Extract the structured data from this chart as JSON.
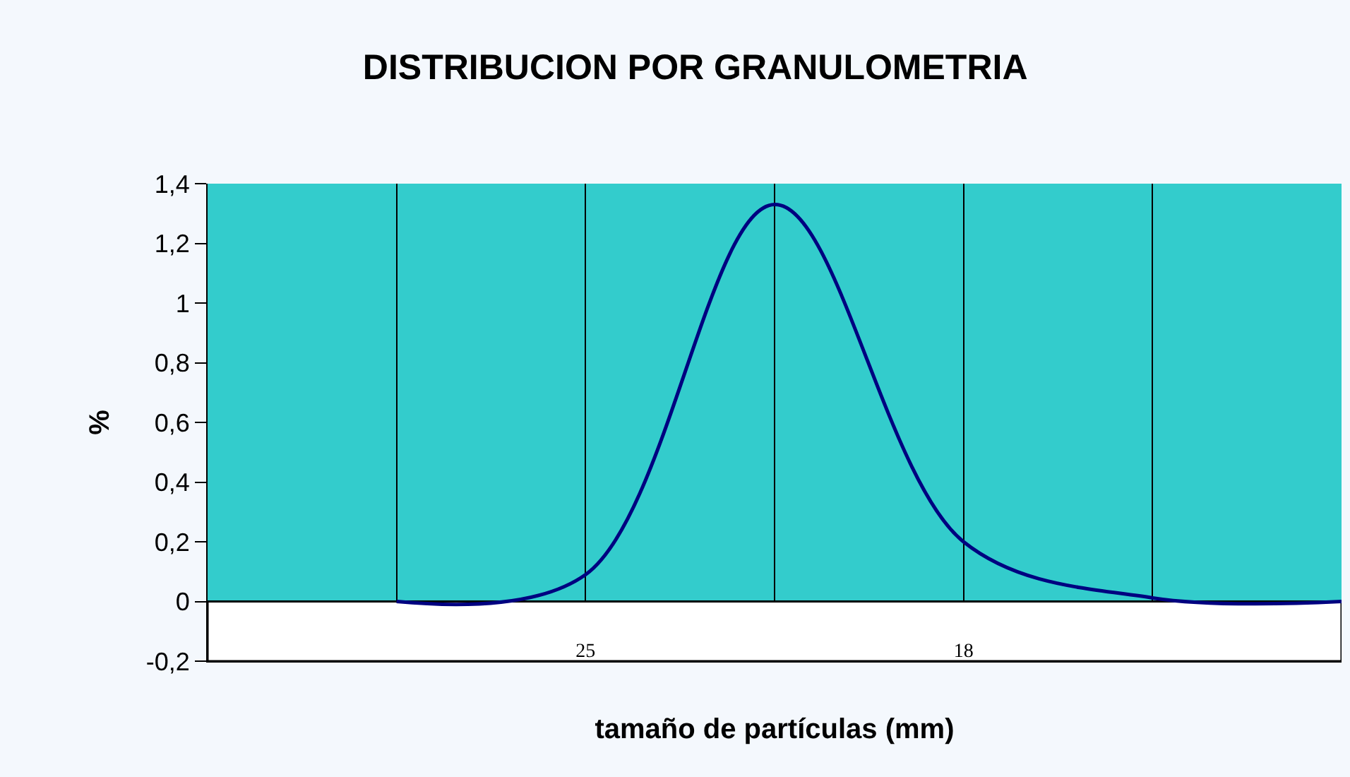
{
  "chart_data": {
    "type": "line",
    "title": "DISTRIBUCION POR GRANULOMETRIA",
    "xlabel": "tamaño de partículas (mm)",
    "ylabel": "%",
    "categories": [
      null,
      null,
      "25",
      null,
      "18",
      null,
      null
    ],
    "series": [
      {
        "color": "#000080",
        "values": [
          null,
          0,
          0.09,
          1.33,
          0.2,
          0.012,
          0
        ]
      }
    ],
    "ylim": [
      -0.2,
      1.4
    ],
    "yticks": [
      {
        "value": -0.2,
        "label": "-0,2"
      },
      0,
      {
        "value": 0.2,
        "label": "0,2"
      },
      {
        "value": 0.4,
        "label": "0,4"
      },
      {
        "value": 0.6,
        "label": "0,6"
      },
      {
        "value": 0.8,
        "label": "0,8"
      },
      1,
      {
        "value": 1.2,
        "label": "1,2"
      },
      {
        "value": 1.4,
        "label": "1,4"
      }
    ],
    "bands": [
      {
        "axis": "y",
        "from": -0.2,
        "to": 0,
        "color": "#ffffff"
      }
    ],
    "grid": "x",
    "legend": false,
    "marker": "none",
    "line_style": "solid"
  }
}
